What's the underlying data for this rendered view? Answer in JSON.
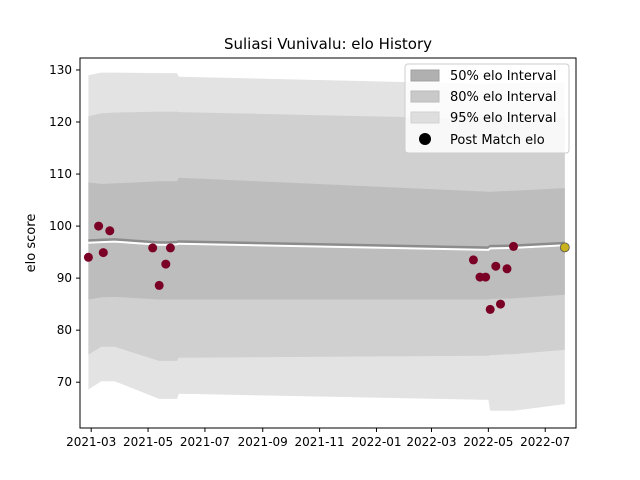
{
  "chart_data": {
    "type": "line",
    "title": "Suliasi Vunivalu: elo History",
    "xlabel": "",
    "ylabel": "elo score",
    "xlim": [
      "2021-02-17",
      "2022-08-03"
    ],
    "ylim": [
      61.2,
      132.3
    ],
    "x_ticks": [
      "2021-03",
      "2021-05",
      "2021-07",
      "2021-09",
      "2021-11",
      "2022-01",
      "2022-03",
      "2022-05",
      "2022-07"
    ],
    "y_ticks": [
      70,
      80,
      90,
      100,
      110,
      120,
      130
    ],
    "grid": false,
    "legend_position": "top-right",
    "legend": [
      {
        "label": "50% elo Interval",
        "color": "#b0b0b0"
      },
      {
        "label": "80% elo Interval",
        "color": "#c9c9c9"
      },
      {
        "label": "95% elo Interval",
        "color": "#dedede"
      },
      {
        "label": "Post Match elo",
        "color": "#000000"
      }
    ],
    "bands_x": [
      "2021-02-26",
      "2021-03-12",
      "2021-03-26",
      "2021-05-13",
      "2021-05-21",
      "2021-06-01",
      "2021-06-03",
      "2022-05-01",
      "2022-05-03",
      "2022-05-28",
      "2022-07-22"
    ],
    "mean": [
      97.2,
      97.3,
      97.4,
      96.8,
      96.8,
      96.9,
      97.0,
      95.8,
      96.1,
      96.2,
      96.7
    ],
    "bands": [
      {
        "level": "95%",
        "upper": [
          129.0,
          129.5,
          129.5,
          129.4,
          129.4,
          129.4,
          128.7,
          127.3,
          127.4,
          127.5,
          127.6
        ],
        "lower": [
          68.6,
          70.2,
          70.2,
          66.8,
          66.8,
          66.8,
          67.8,
          66.6,
          64.5,
          64.5,
          65.8
        ]
      },
      {
        "level": "80%",
        "upper": [
          121.1,
          121.7,
          121.8,
          122.0,
          122.0,
          122.0,
          121.9,
          120.6,
          120.7,
          120.9,
          120.9
        ],
        "lower": [
          75.3,
          76.8,
          76.8,
          74.1,
          74.1,
          74.1,
          74.7,
          75.1,
          75.2,
          75.4,
          76.2
        ]
      },
      {
        "level": "50%",
        "upper": [
          108.4,
          108.1,
          108.2,
          108.6,
          108.6,
          108.6,
          109.3,
          106.6,
          106.6,
          106.8,
          107.3
        ],
        "lower": [
          85.9,
          86.3,
          86.4,
          85.9,
          85.9,
          85.9,
          85.9,
          85.9,
          86.0,
          86.1,
          86.8
        ]
      }
    ],
    "points": [
      {
        "x": "2021-02-26",
        "y": 94.0
      },
      {
        "x": "2021-03-09",
        "y": 100.0
      },
      {
        "x": "2021-03-14",
        "y": 94.9
      },
      {
        "x": "2021-03-21",
        "y": 99.1
      },
      {
        "x": "2021-05-06",
        "y": 95.8
      },
      {
        "x": "2021-05-13",
        "y": 88.6
      },
      {
        "x": "2021-05-20",
        "y": 92.7
      },
      {
        "x": "2021-05-25",
        "y": 95.8
      },
      {
        "x": "2022-04-15",
        "y": 93.5
      },
      {
        "x": "2022-04-22",
        "y": 90.2
      },
      {
        "x": "2022-04-28",
        "y": 90.2
      },
      {
        "x": "2022-05-03",
        "y": 84.0
      },
      {
        "x": "2022-05-09",
        "y": 92.3
      },
      {
        "x": "2022-05-14",
        "y": 85.0
      },
      {
        "x": "2022-05-21",
        "y": 91.8
      },
      {
        "x": "2022-05-28",
        "y": 96.1
      },
      {
        "x": "2022-07-22",
        "y": 95.9,
        "highlight": true
      }
    ],
    "colors": {
      "point": "#7a0025",
      "point_highlight": "#c9b21e",
      "mean_line": "#8c8c8c",
      "band_95": "#e3e3e3",
      "band_80": "#d0d0d0",
      "band_50": "#bdbdbd"
    }
  }
}
